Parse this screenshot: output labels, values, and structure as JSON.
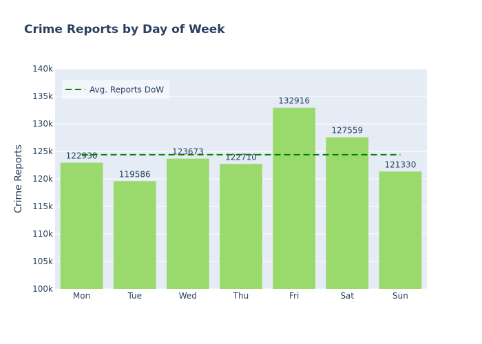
{
  "chart_data": {
    "type": "bar",
    "title": "Crime Reports by Day of Week",
    "xlabel": "",
    "ylabel": "Crime Reports",
    "categories": [
      "Mon",
      "Tue",
      "Wed",
      "Thu",
      "Fri",
      "Sat",
      "Sun"
    ],
    "values": [
      122930,
      119586,
      123673,
      122710,
      132916,
      127559,
      121330
    ],
    "data_labels": [
      "122930",
      "119586",
      "123673",
      "122710",
      "132916",
      "127559",
      "121330"
    ],
    "ylim": [
      100000,
      140000
    ],
    "yticks": [
      100000,
      105000,
      110000,
      115000,
      120000,
      125000,
      130000,
      135000,
      140000
    ],
    "ytick_labels": [
      "100k",
      "105k",
      "110k",
      "115k",
      "120k",
      "125k",
      "130k",
      "135k",
      "140k"
    ],
    "average_line": {
      "name": "Avg. Reports DoW",
      "value": 124386,
      "style": "dashed",
      "color": "#008000"
    },
    "bar_color": "#9ad96b",
    "plot_bg": "#e5ecf6",
    "grid": true,
    "legend_position": "top-left"
  }
}
